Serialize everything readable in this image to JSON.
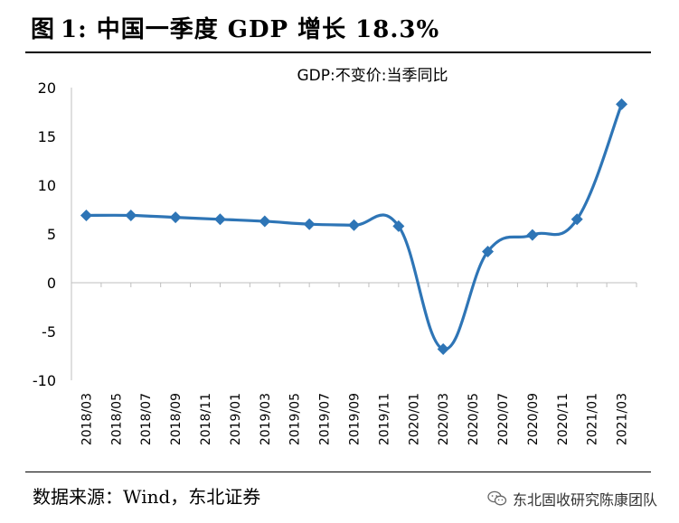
{
  "header": {
    "figure_label": "图",
    "figure_number": "1:",
    "title": "中国一季度 GDP 增长 18.3%"
  },
  "footer": {
    "source": "数据来源：Wind，东北证券",
    "watermark": "东北固收研究陈康团队"
  },
  "chart_data": {
    "type": "line",
    "title": "GDP:不变价:当季同比",
    "xlabel": "",
    "ylabel": "",
    "ylim": [
      -10,
      20
    ],
    "yticks": [
      "20",
      "15",
      "10",
      "5",
      "0",
      "-5",
      "-10"
    ],
    "ytick_values": [
      20,
      15,
      10,
      5,
      0,
      -5,
      -10
    ],
    "categories": [
      "2018/03",
      "2018/05",
      "2018/07",
      "2018/09",
      "2018/11",
      "2019/01",
      "2019/03",
      "2019/05",
      "2019/07",
      "2019/09",
      "2019/11",
      "2020/01",
      "2020/03",
      "2020/05",
      "2020/07",
      "2020/09",
      "2020/11",
      "2021/01",
      "2021/03"
    ],
    "series": [
      {
        "name": "GDP:不变价:当季同比",
        "color": "#2e75b6",
        "marker": "diamond",
        "points": [
          {
            "x": "2018/03",
            "y": 6.9
          },
          {
            "x": "2018/06",
            "y": 6.9
          },
          {
            "x": "2018/09",
            "y": 6.7
          },
          {
            "x": "2018/12",
            "y": 6.5
          },
          {
            "x": "2019/03",
            "y": 6.3
          },
          {
            "x": "2019/06",
            "y": 6.0
          },
          {
            "x": "2019/09",
            "y": 5.9
          },
          {
            "x": "2019/12",
            "y": 5.8
          },
          {
            "x": "2020/03",
            "y": -6.8
          },
          {
            "x": "2020/06",
            "y": 3.2
          },
          {
            "x": "2020/09",
            "y": 4.9
          },
          {
            "x": "2020/12",
            "y": 6.5
          },
          {
            "x": "2021/03",
            "y": 18.3
          }
        ]
      }
    ],
    "grid": false,
    "legend": "none"
  }
}
